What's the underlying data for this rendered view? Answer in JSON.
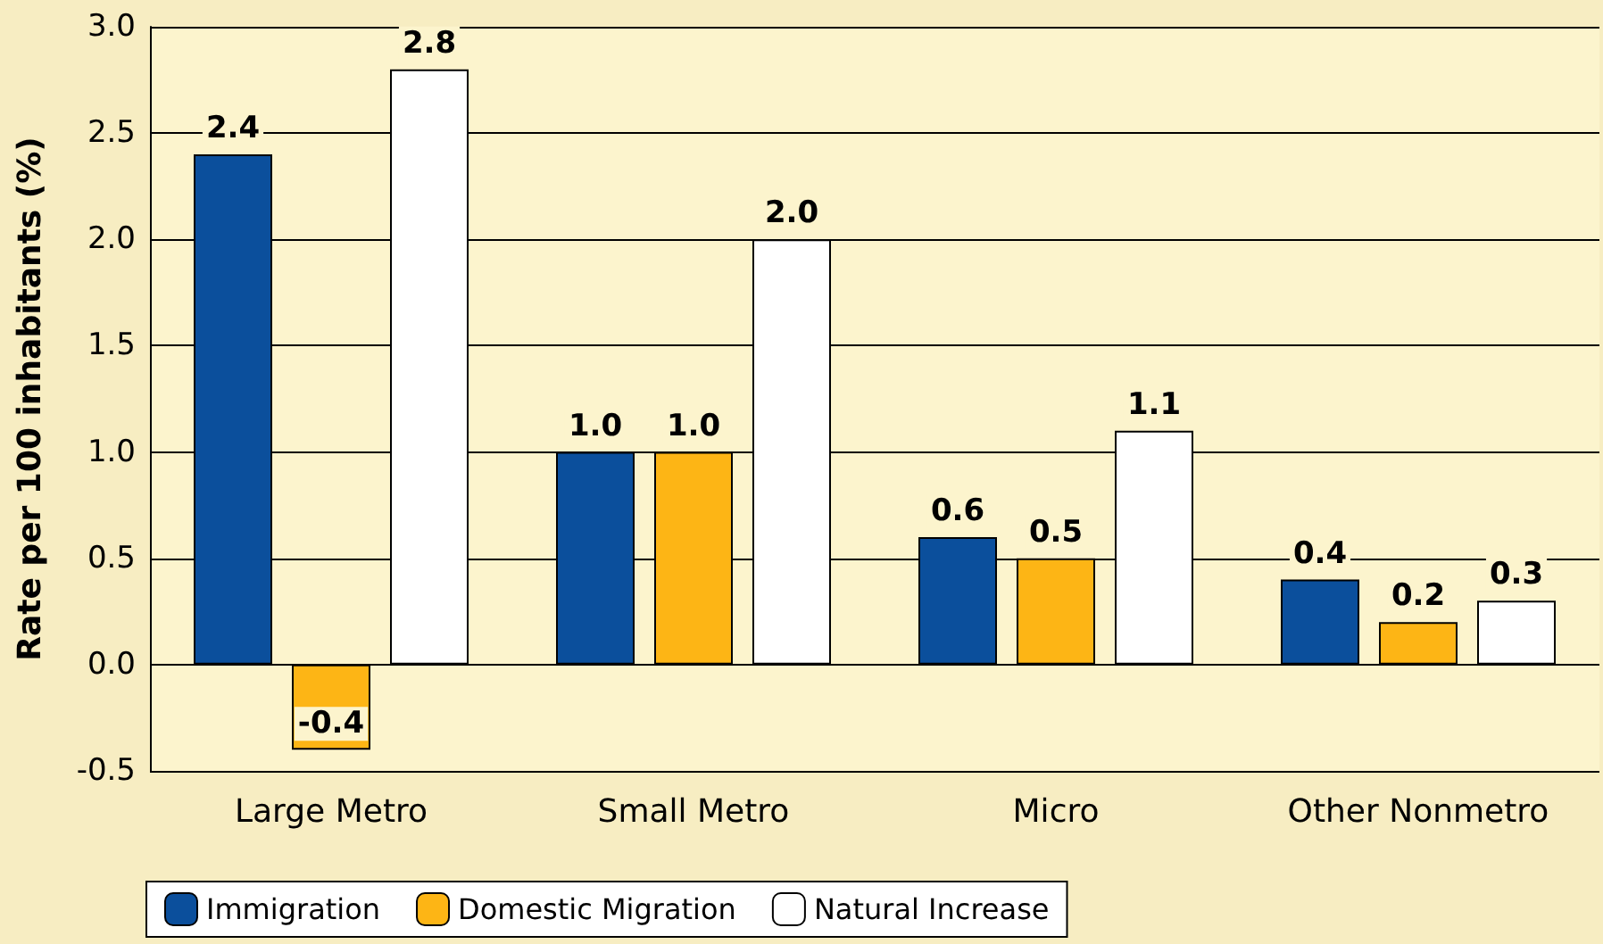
{
  "chart_data": {
    "type": "bar",
    "ylabel": "Rate per 100 inhabitants (%)",
    "categories": [
      "Large Metro",
      "Small Metro",
      "Micro",
      "Other Nonmetro"
    ],
    "series": [
      {
        "name": "Immigration",
        "color": "#0b4f9c",
        "values": [
          2.4,
          1.0,
          0.6,
          0.4
        ],
        "value_labels": [
          "2.4",
          "1.0",
          "0.6",
          "0.4"
        ]
      },
      {
        "name": "Domestic Migration",
        "color": "#fdb515",
        "values": [
          -0.4,
          1.0,
          0.5,
          0.2
        ],
        "value_labels": [
          "-0.4",
          "1.0",
          "0.5",
          "0.2"
        ]
      },
      {
        "name": "Natural Increase",
        "color": "#ffffff",
        "values": [
          2.8,
          2.0,
          1.1,
          0.3
        ],
        "value_labels": [
          "2.8",
          "2.0",
          "1.1",
          "0.3"
        ]
      }
    ],
    "ylim": [
      -0.5,
      3.0
    ],
    "yticks": [
      {
        "value": -0.5,
        "label": "-0.5"
      },
      {
        "value": 0,
        "label": "0.0"
      },
      {
        "value": 0.5,
        "label": "0.5"
      },
      {
        "value": 1,
        "label": "1.0"
      },
      {
        "value": 1.5,
        "label": "1.5"
      },
      {
        "value": 2,
        "label": "2.0"
      },
      {
        "value": 2.5,
        "label": "2.5"
      },
      {
        "value": 3,
        "label": "3.0"
      }
    ],
    "grid": "y",
    "legend": "bottom left"
  }
}
